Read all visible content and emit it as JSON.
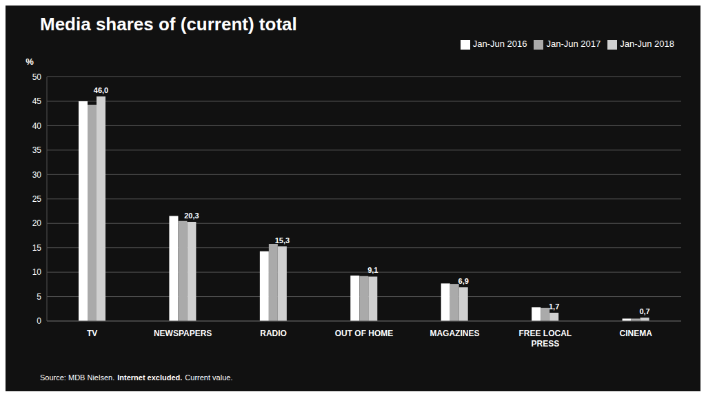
{
  "chart_data": {
    "type": "bar",
    "title": "Media shares of (current) total",
    "categories": [
      "TV",
      "NEWSPAPERS",
      "RADIO",
      "OUT OF HOME",
      "MAGAZINES",
      "FREE LOCAL\nPRESS",
      "CINEMA"
    ],
    "series": [
      {
        "name": "Jan-Jun 2016",
        "color": "#ffffff",
        "values": [
          45.0,
          21.5,
          14.3,
          9.3,
          7.7,
          2.8,
          0.5
        ]
      },
      {
        "name": "Jan-Jun 2017",
        "color": "#aaaaaa",
        "values": [
          44.3,
          20.5,
          15.8,
          9.2,
          7.6,
          2.7,
          0.5
        ]
      },
      {
        "name": "Jan-Jun 2018",
        "color": "#d0d0d0",
        "values": [
          46.0,
          20.3,
          15.3,
          9.1,
          6.9,
          1.7,
          0.7
        ],
        "data_labels": true,
        "value_labels": [
          "46,0",
          "20,3",
          "15,3",
          "9,1",
          "6,9",
          "1,7",
          "0,7"
        ]
      }
    ],
    "ylabel": "%",
    "ylim": [
      0,
      50
    ],
    "yticks": [
      0,
      5,
      10,
      15,
      20,
      25,
      30,
      35,
      40,
      45,
      50
    ],
    "grid": true,
    "legend": "upper right",
    "annotations": [
      "Source: MDB Nielsen.",
      "Internet excluded.",
      "Current value."
    ]
  }
}
